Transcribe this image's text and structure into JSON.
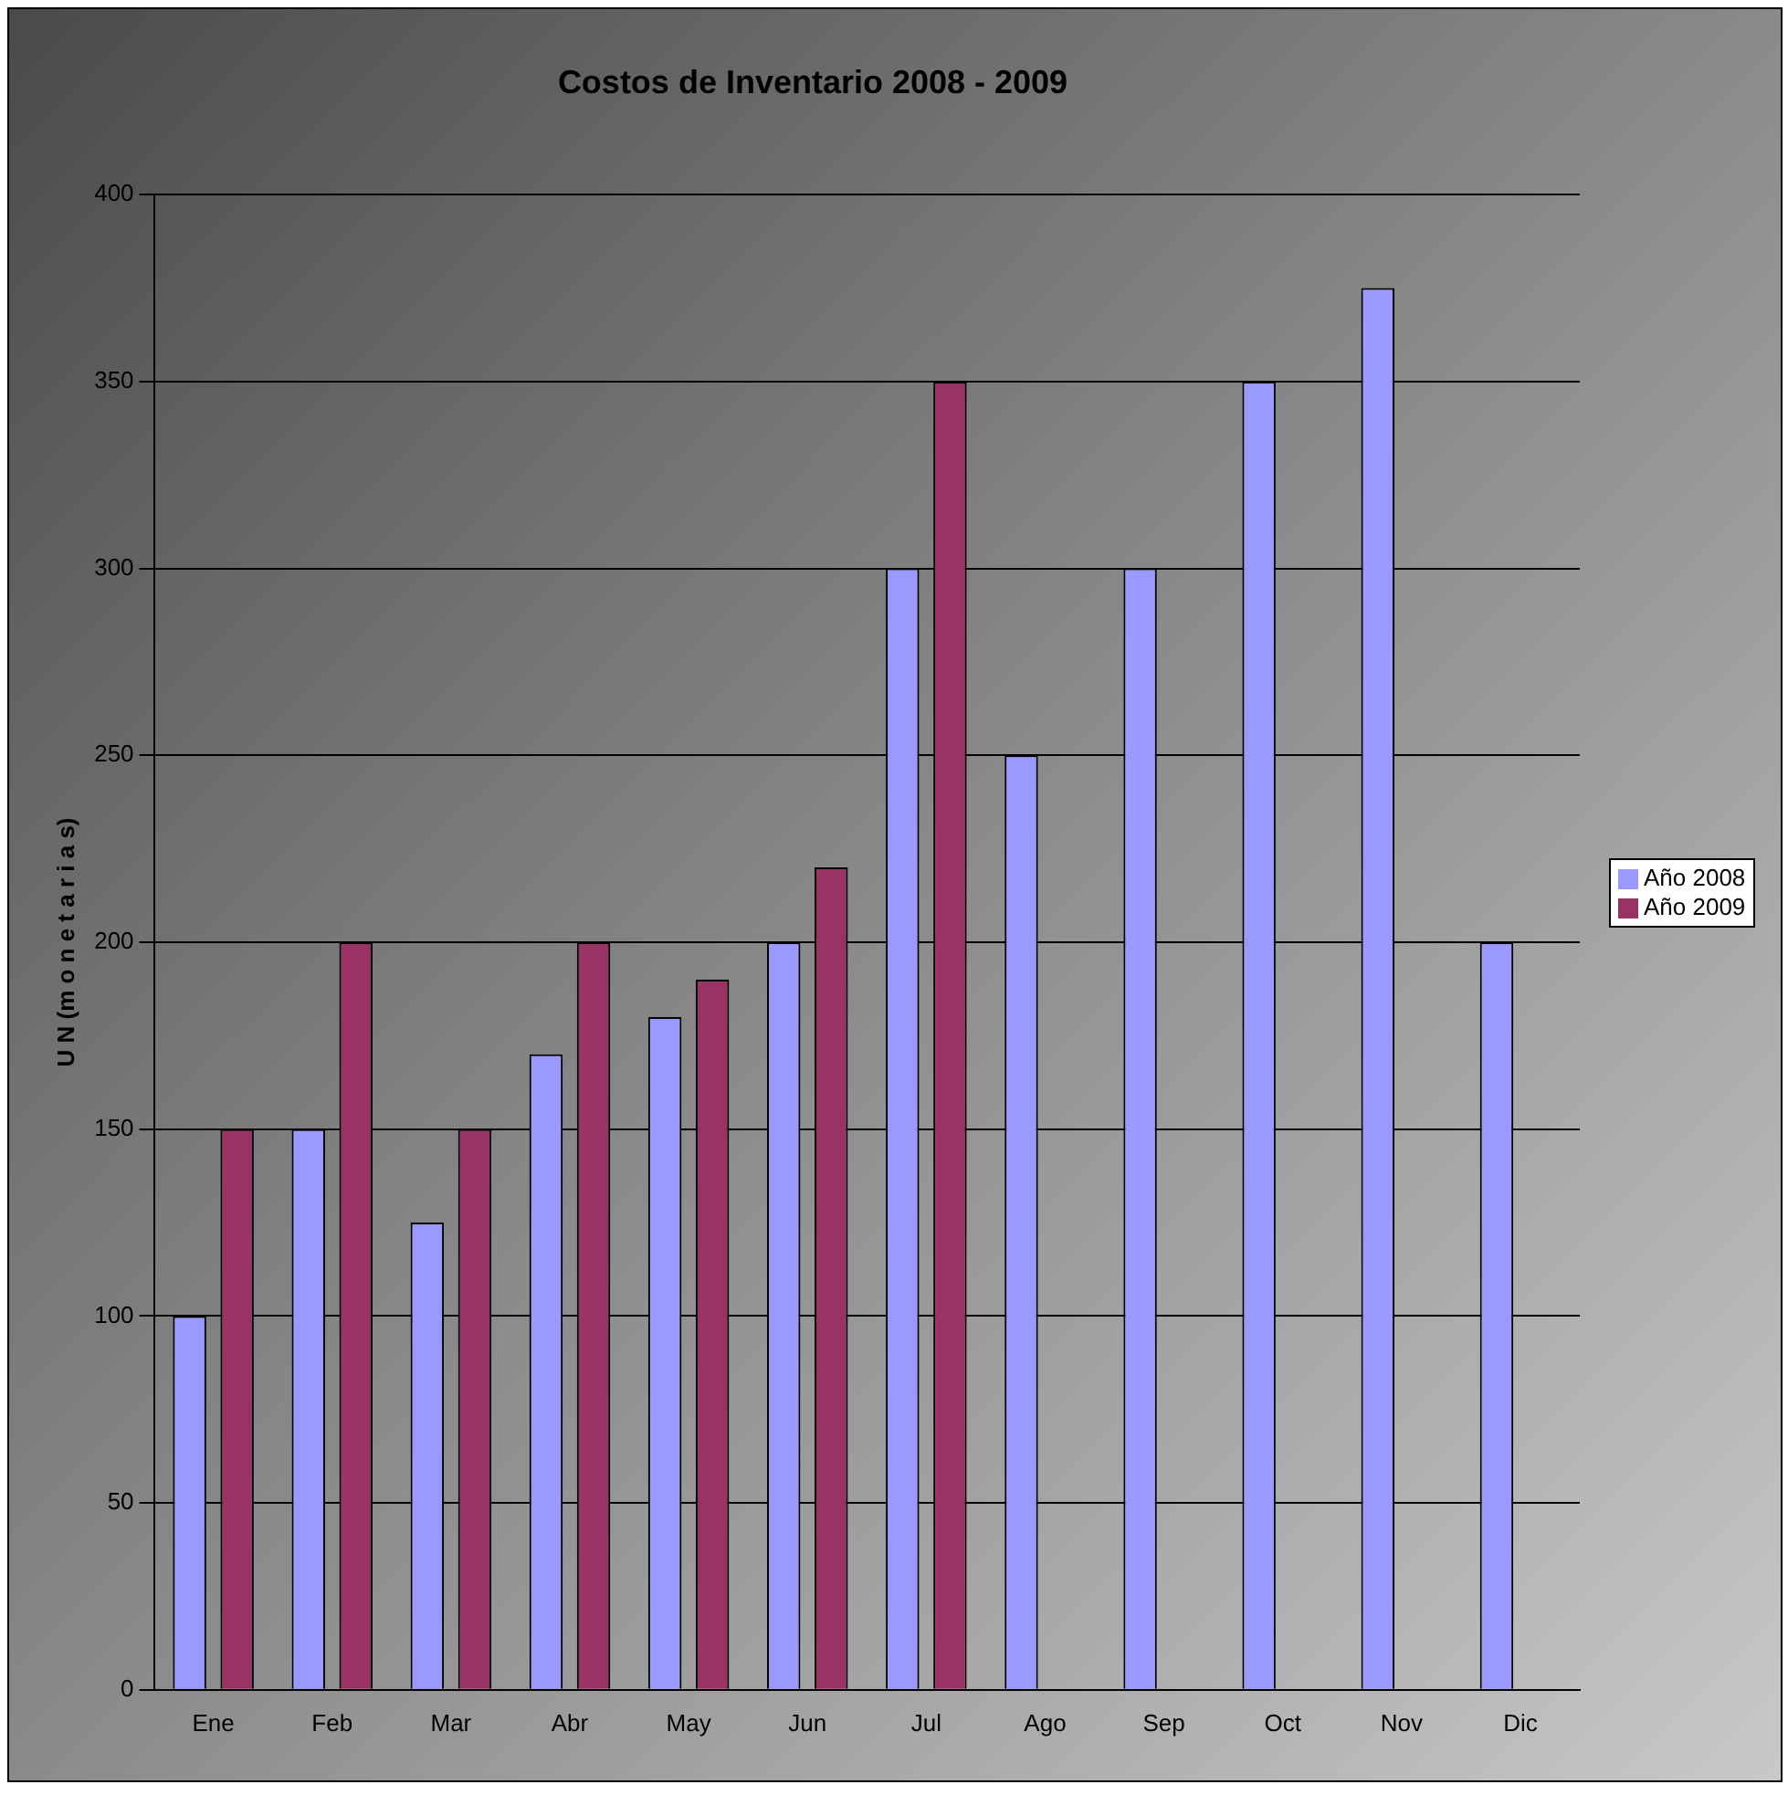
{
  "chart_data": {
    "type": "bar",
    "title": "Costos de Inventario 2008 - 2009",
    "ylabel": "U N (m o n e t a r i a s)",
    "categories": [
      "Ene",
      "Feb",
      "Mar",
      "Abr",
      "May",
      "Jun",
      "Jul",
      "Ago",
      "Sep",
      "Oct",
      "Nov",
      "Dic"
    ],
    "series": [
      {
        "name": "Año 2008",
        "color": "#9999ff",
        "values": [
          100,
          150,
          125,
          170,
          180,
          200,
          300,
          250,
          300,
          350,
          375,
          200
        ]
      },
      {
        "name": "Año 2009",
        "color": "#993366",
        "values": [
          150,
          200,
          150,
          200,
          190,
          220,
          350,
          null,
          null,
          null,
          null,
          null
        ]
      }
    ],
    "ylim": [
      0,
      400
    ],
    "yticks": [
      0,
      50,
      100,
      150,
      200,
      250,
      300,
      350,
      400
    ],
    "grid": "y",
    "legend": "right"
  }
}
